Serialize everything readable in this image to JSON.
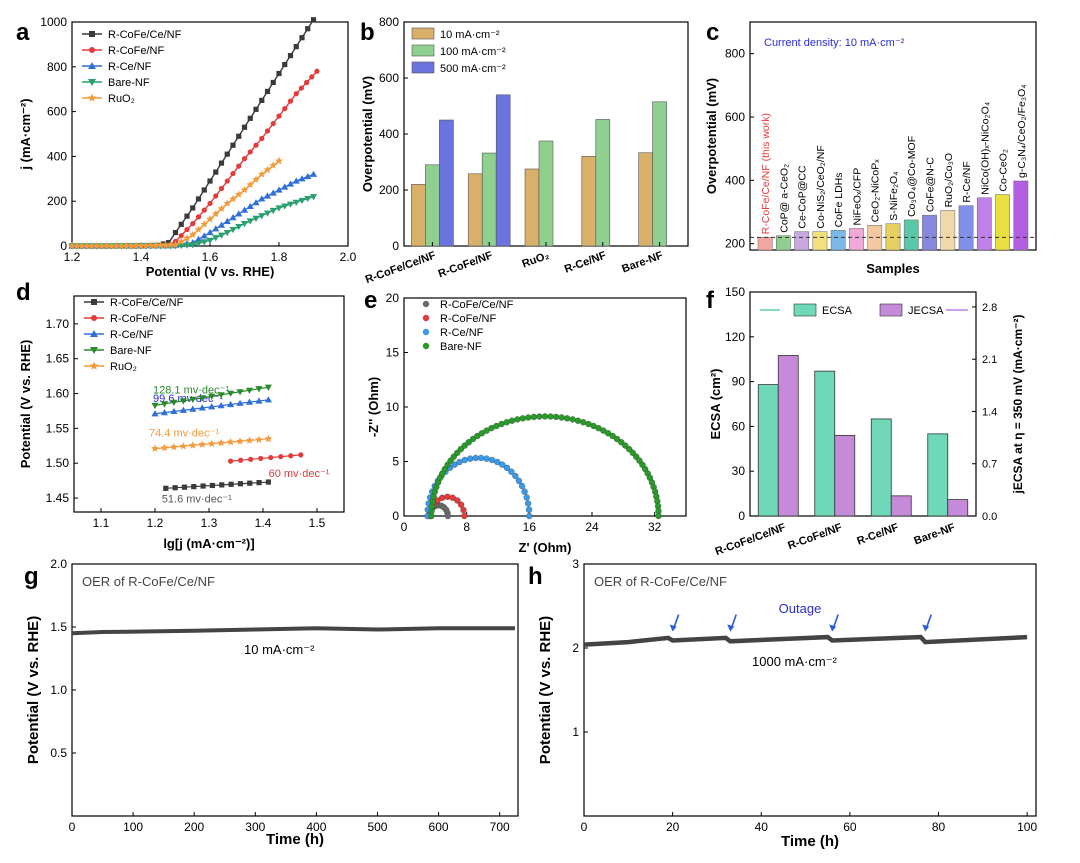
{
  "panel_letters": [
    "a",
    "b",
    "c",
    "d",
    "e",
    "f",
    "g",
    "h"
  ],
  "chart_data": [
    {
      "panel": "a",
      "type": "line",
      "xlabel": "Potential (V vs. RHE)",
      "ylabel": "j (mA·cm⁻²)",
      "xlim": [
        1.2,
        2.0
      ],
      "ylim": [
        0,
        1000
      ],
      "xticks": [
        "1.2",
        "1.4",
        "1.6",
        "1.8",
        "2.0"
      ],
      "yticks": [
        "0",
        "200",
        "400",
        "600",
        "800",
        "1000"
      ],
      "legend_position": "top-left",
      "series": [
        {
          "name": "R-CoFe/Ce/NF",
          "color": "#3a3a3a",
          "marker": "square",
          "points": [
            [
              1.2,
              0
            ],
            [
              1.3,
              0
            ],
            [
              1.4,
              1
            ],
            [
              1.45,
              3
            ],
            [
              1.48,
              15
            ],
            [
              1.5,
              60
            ],
            [
              1.55,
              170
            ],
            [
              1.6,
              290
            ],
            [
              1.65,
              410
            ],
            [
              1.7,
              530
            ],
            [
              1.75,
              650
            ],
            [
              1.8,
              770
            ],
            [
              1.85,
              890
            ],
            [
              1.9,
              1010
            ]
          ]
        },
        {
          "name": "R-CoFe/NF",
          "color": "#e23b3b",
          "marker": "circle",
          "points": [
            [
              1.2,
              0
            ],
            [
              1.3,
              0
            ],
            [
              1.4,
              1
            ],
            [
              1.48,
              4
            ],
            [
              1.5,
              20
            ],
            [
              1.55,
              100
            ],
            [
              1.6,
              190
            ],
            [
              1.65,
              290
            ],
            [
              1.7,
              390
            ],
            [
              1.75,
              480
            ],
            [
              1.8,
              580
            ],
            [
              1.85,
              680
            ],
            [
              1.91,
              780
            ]
          ]
        },
        {
          "name": "R-Ce/NF",
          "color": "#2f6fd6",
          "marker": "triangle-up",
          "points": [
            [
              1.2,
              0
            ],
            [
              1.3,
              0
            ],
            [
              1.4,
              0
            ],
            [
              1.5,
              2
            ],
            [
              1.55,
              15
            ],
            [
              1.6,
              60
            ],
            [
              1.65,
              110
            ],
            [
              1.7,
              160
            ],
            [
              1.75,
              210
            ],
            [
              1.8,
              250
            ],
            [
              1.85,
              290
            ],
            [
              1.9,
              320
            ]
          ]
        },
        {
          "name": "Bare-NF",
          "color": "#2aa070",
          "marker": "triangle-down",
          "points": [
            [
              1.2,
              0
            ],
            [
              1.3,
              0
            ],
            [
              1.4,
              0
            ],
            [
              1.5,
              1
            ],
            [
              1.55,
              5
            ],
            [
              1.6,
              25
            ],
            [
              1.65,
              60
            ],
            [
              1.7,
              100
            ],
            [
              1.75,
              135
            ],
            [
              1.8,
              170
            ],
            [
              1.85,
              195
            ],
            [
              1.9,
              220
            ]
          ]
        },
        {
          "name": "RuO₂",
          "color": "#f39a3c",
          "marker": "star",
          "points": [
            [
              1.2,
              0
            ],
            [
              1.3,
              0
            ],
            [
              1.4,
              1
            ],
            [
              1.5,
              5
            ],
            [
              1.55,
              50
            ],
            [
              1.6,
              120
            ],
            [
              1.65,
              190
            ],
            [
              1.7,
              250
            ],
            [
              1.75,
              320
            ],
            [
              1.8,
              380
            ]
          ]
        }
      ]
    },
    {
      "panel": "b",
      "type": "bar",
      "ylabel": "Overpotential (mV)",
      "ylim": [
        0,
        800
      ],
      "yticks": [
        "0",
        "200",
        "400",
        "600",
        "800"
      ],
      "categories": [
        "R-CoFe/Ce/NF",
        "R-CoFe/NF",
        "RuO₂",
        "R-Ce/NF",
        "Bare-NF"
      ],
      "legend_position": "top-left",
      "series": [
        {
          "name": "10 mA·cm⁻²",
          "color": "#d9b06a",
          "values": [
            220,
            258,
            275,
            320,
            333
          ]
        },
        {
          "name": "100 mA·cm⁻²",
          "color": "#8fcf8f",
          "values": [
            290,
            332,
            375,
            452,
            515
          ]
        },
        {
          "name": "500 mA·cm⁻²",
          "color": "#6b73e0",
          "values": [
            450,
            540,
            null,
            null,
            null
          ]
        }
      ]
    },
    {
      "panel": "c",
      "type": "bar",
      "annotation": "Current density: 10 mA·cm⁻²",
      "xlabel": "Samples",
      "ylabel": "Overpotential (mV)",
      "ylim": [
        180,
        900
      ],
      "yticks": [
        "200",
        "400",
        "600",
        "800"
      ],
      "reference_line": 220,
      "categories": [
        "R-CoFe/Ce/NF (this work)",
        "CoP@ a-CeO₂",
        "Ce-CoP@CC",
        "Co-NiS₂/CeO₂/NF",
        "CoFe LDHs",
        "NiFeOₓ/CFP",
        "CeO₂-NiCoPₓ",
        "S-NiFe₂O₄",
        "Co₃O₄@Co-MOF",
        "CoFe@N-C",
        "RuO₂/Co₃O",
        "R-Ce/NF",
        "NiCo(OH)ₓ-NiCo₂O₄",
        "Co-CeO₂",
        "g-C₃N₄/CeO₂/Fe₃O₄"
      ],
      "values": [
        220,
        225,
        238,
        238,
        242,
        248,
        258,
        263,
        275,
        290,
        305,
        320,
        345,
        355,
        398
      ],
      "colors": [
        "#f4a6a0",
        "#8fcf8f",
        "#c8a8e0",
        "#f2e07a",
        "#7ab8e8",
        "#f0a8d8",
        "#f4c8a0",
        "#e8d060",
        "#58c8a8",
        "#8888e0",
        "#f0d8a8",
        "#8090e8",
        "#c080e8",
        "#e8e040",
        "#b060e0"
      ],
      "highlight_color": "#e23b3b"
    },
    {
      "panel": "d",
      "type": "line",
      "xlabel": "lg[j  (mA·cm⁻²)]",
      "ylabel": "Potential (V vs. RHE)",
      "xlim": [
        1.05,
        1.55
      ],
      "ylim": [
        1.43,
        1.74
      ],
      "xticks": [
        "1.1",
        "1.2",
        "1.3",
        "1.4",
        "1.5"
      ],
      "yticks": [
        "1.45",
        "1.50",
        "1.55",
        "1.60",
        "1.65",
        "1.70"
      ],
      "legend_position": "top-left",
      "series": [
        {
          "name": "R-CoFe/Ce/NF",
          "color": "#3a3a3a",
          "marker": "square",
          "points": [
            [
              1.22,
              1.464
            ],
            [
              1.41,
              1.473
            ]
          ],
          "tafel": "51.6 mv·dec⁻¹"
        },
        {
          "name": "R-CoFe/NF",
          "color": "#e23b3b",
          "marker": "circle",
          "points": [
            [
              1.34,
              1.503
            ],
            [
              1.47,
              1.512
            ]
          ],
          "tafel": "60 mv·dec⁻¹"
        },
        {
          "name": "R-Ce/NF",
          "color": "#2f6fd6",
          "marker": "triangle-up",
          "points": [
            [
              1.2,
              1.571
            ],
            [
              1.41,
              1.591
            ]
          ],
          "tafel": "99.6 mv·dec⁻¹"
        },
        {
          "name": "Bare-NF",
          "color": "#2a8a2a",
          "marker": "triangle-down",
          "points": [
            [
              1.2,
              1.583
            ],
            [
              1.41,
              1.609
            ]
          ],
          "tafel": "128.1 mv·dec⁻¹"
        },
        {
          "name": "RuO₂",
          "color": "#f39a3c",
          "marker": "star",
          "points": [
            [
              1.2,
              1.521
            ],
            [
              1.41,
              1.535
            ]
          ],
          "tafel": "74.4 mv·dec⁻¹"
        }
      ]
    },
    {
      "panel": "e",
      "type": "scatter",
      "xlabel": "Z' (Ohm)",
      "ylabel": "-Z'' (Ohm)",
      "xlim": [
        0,
        36
      ],
      "ylim": [
        0,
        20
      ],
      "xticks": [
        "0",
        "8",
        "16",
        "24",
        "32"
      ],
      "yticks": [
        "0",
        "5",
        "10",
        "15",
        "20"
      ],
      "legend_position": "top-left",
      "series": [
        {
          "name": "R-CoFe/Ce/NF",
          "color": "#6a6a6a",
          "arc": {
            "start": 3.2,
            "end": 5.6
          }
        },
        {
          "name": "R-CoFe/NF",
          "color": "#e23b3b",
          "arc": {
            "start": 3.4,
            "end": 7.7
          }
        },
        {
          "name": "R-Ce/NF",
          "color": "#3a9ae8",
          "arc": {
            "start": 3.0,
            "end": 16.0
          }
        },
        {
          "name": "Bare-NF",
          "color": "#2a9a2a",
          "arc": {
            "start": 3.5,
            "end": 32.5
          }
        }
      ]
    },
    {
      "panel": "f",
      "type": "bar",
      "ylabel": "ECSA (cm²)",
      "ylabel_right": "jECSA at η = 350 mV (mA·cm⁻²)",
      "ylim": [
        0,
        150
      ],
      "ylim_right": [
        0,
        3.0
      ],
      "yticks": [
        "0",
        "30",
        "60",
        "90",
        "120",
        "150"
      ],
      "yticks_right": [
        "0.0",
        "0.7",
        "1.4",
        "2.1",
        "2.8"
      ],
      "categories": [
        "R-CoFe/Ce/NF",
        "R-CoFe/NF",
        "R-Ce/NF",
        "Bare-NF"
      ],
      "legend_position": "top",
      "series": [
        {
          "name": "ECSA",
          "axis": "left",
          "color": "#6fd8b8",
          "values": [
            88,
            97,
            65,
            55
          ]
        },
        {
          "name": "JECSA",
          "axis": "right",
          "color": "#c58ad8",
          "values": [
            2.15,
            1.08,
            0.27,
            0.22
          ]
        }
      ]
    },
    {
      "panel": "g",
      "type": "line",
      "title": "OER of R-CoFe/Ce/NF",
      "annotation": "10 mA·cm⁻²",
      "xlabel": "Time (h)",
      "ylabel": "Potential (V vs. RHE)",
      "xlim": [
        0,
        730
      ],
      "ylim": [
        0,
        2.0
      ],
      "xticks": [
        "0",
        "100",
        "200",
        "300",
        "400",
        "500",
        "600",
        "700"
      ],
      "yticks": [
        "0.5",
        "1.0",
        "1.5",
        "2.0"
      ],
      "series": [
        {
          "name": "",
          "color": "#444444",
          "points": [
            [
              0,
              1.45
            ],
            [
              50,
              1.46
            ],
            [
              200,
              1.47
            ],
            [
              300,
              1.48
            ],
            [
              400,
              1.49
            ],
            [
              500,
              1.48
            ],
            [
              600,
              1.49
            ],
            [
              725,
              1.49
            ]
          ]
        }
      ]
    },
    {
      "panel": "h",
      "type": "line",
      "title": "OER of R-CoFe/Ce/NF",
      "annotation": "1000 mA·cm⁻²",
      "outage_label": "Outage",
      "outage_times": [
        20,
        33,
        56,
        77
      ],
      "xlabel": "Time (h)",
      "ylabel": "Potential (V vs. RHE)",
      "xlim": [
        0,
        102
      ],
      "ylim": [
        0,
        3.0
      ],
      "xticks": [
        "0",
        "20",
        "40",
        "60",
        "80",
        "100"
      ],
      "yticks": [
        "1",
        "2",
        "3"
      ],
      "series": [
        {
          "name": "",
          "color": "#444444",
          "points": [
            [
              0,
              2.04
            ],
            [
              10,
              2.07
            ],
            [
              19,
              2.12
            ],
            [
              20,
              2.09
            ],
            [
              32,
              2.12
            ],
            [
              33,
              2.08
            ],
            [
              55,
              2.13
            ],
            [
              56,
              2.09
            ],
            [
              76,
              2.13
            ],
            [
              77,
              2.07
            ],
            [
              100,
              2.13
            ]
          ]
        }
      ]
    }
  ]
}
